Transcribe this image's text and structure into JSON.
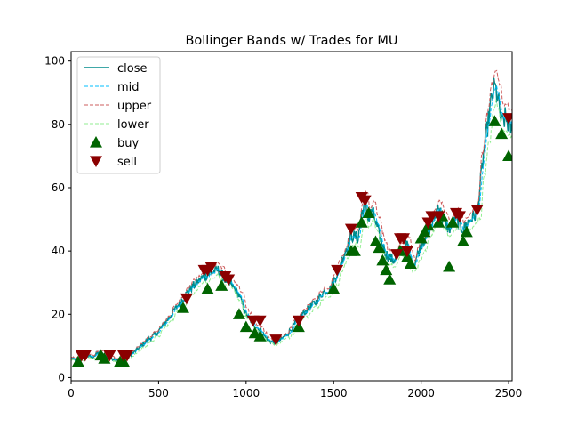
{
  "chart_data": {
    "type": "line",
    "title": "Bollinger Bands w/ Trades for MU",
    "xlabel": "",
    "ylabel": "",
    "xlim": [
      0,
      2520
    ],
    "ylim": [
      -1,
      103
    ],
    "xticks": [
      0,
      500,
      1000,
      1500,
      2000,
      2500
    ],
    "yticks": [
      0,
      20,
      40,
      60,
      80,
      100
    ],
    "grid": false,
    "legend_position": "top-left",
    "colors": {
      "close": "#008b8b",
      "mid": "#00bfff",
      "upper": "#cd5c5c",
      "lower": "#90ee90",
      "buy": "#006400",
      "sell": "#8b0000"
    },
    "legend": [
      {
        "key": "close",
        "label": "close",
        "style": "solid"
      },
      {
        "key": "mid",
        "label": "mid",
        "style": "dashed"
      },
      {
        "key": "upper",
        "label": "upper",
        "style": "dashed"
      },
      {
        "key": "lower",
        "label": "lower",
        "style": "dashed"
      },
      {
        "key": "buy",
        "label": "buy",
        "style": "triangle-up"
      },
      {
        "key": "sell",
        "label": "sell",
        "style": "triangle-down"
      }
    ],
    "close_path": [
      [
        0,
        6
      ],
      [
        40,
        5.5
      ],
      [
        80,
        7
      ],
      [
        120,
        6.5
      ],
      [
        160,
        8
      ],
      [
        200,
        6.5
      ],
      [
        240,
        6
      ],
      [
        280,
        5.5
      ],
      [
        320,
        6.5
      ],
      [
        360,
        8
      ],
      [
        400,
        10
      ],
      [
        440,
        12
      ],
      [
        480,
        13.5
      ],
      [
        520,
        16
      ],
      [
        560,
        19
      ],
      [
        600,
        22
      ],
      [
        640,
        25
      ],
      [
        680,
        28
      ],
      [
        720,
        30
      ],
      [
        760,
        32
      ],
      [
        800,
        33
      ],
      [
        840,
        34
      ],
      [
        880,
        31
      ],
      [
        920,
        29
      ],
      [
        960,
        26
      ],
      [
        1000,
        20
      ],
      [
        1040,
        17
      ],
      [
        1080,
        15
      ],
      [
        1120,
        12
      ],
      [
        1160,
        11
      ],
      [
        1200,
        12
      ],
      [
        1240,
        14
      ],
      [
        1280,
        17
      ],
      [
        1320,
        20
      ],
      [
        1360,
        22
      ],
      [
        1400,
        24
      ],
      [
        1440,
        27
      ],
      [
        1480,
        28
      ],
      [
        1520,
        33
      ],
      [
        1560,
        39
      ],
      [
        1600,
        45
      ],
      [
        1640,
        44
      ],
      [
        1660,
        52
      ],
      [
        1680,
        55
      ],
      [
        1700,
        50
      ],
      [
        1720,
        53
      ],
      [
        1760,
        45
      ],
      [
        1800,
        39
      ],
      [
        1840,
        37
      ],
      [
        1880,
        40
      ],
      [
        1920,
        42
      ],
      [
        1940,
        37
      ],
      [
        1960,
        36
      ],
      [
        2000,
        42
      ],
      [
        2040,
        46
      ],
      [
        2080,
        51
      ],
      [
        2100,
        55
      ],
      [
        2120,
        50
      ],
      [
        2160,
        47
      ],
      [
        2200,
        50
      ],
      [
        2240,
        47
      ],
      [
        2280,
        50
      ],
      [
        2320,
        52
      ],
      [
        2360,
        72
      ],
      [
        2400,
        87
      ],
      [
        2420,
        92
      ],
      [
        2440,
        88
      ],
      [
        2460,
        80
      ],
      [
        2480,
        82
      ],
      [
        2520,
        78
      ]
    ],
    "buy": [
      [
        40,
        5
      ],
      [
        170,
        7
      ],
      [
        190,
        6
      ],
      [
        280,
        5
      ],
      [
        300,
        5
      ],
      [
        640,
        22
      ],
      [
        780,
        28
      ],
      [
        860,
        29
      ],
      [
        960,
        20
      ],
      [
        1000,
        16
      ],
      [
        1050,
        14
      ],
      [
        1080,
        13
      ],
      [
        1300,
        16
      ],
      [
        1500,
        28
      ],
      [
        1600,
        40
      ],
      [
        1620,
        40
      ],
      [
        1660,
        49
      ],
      [
        1700,
        52
      ],
      [
        1740,
        43
      ],
      [
        1760,
        41
      ],
      [
        1780,
        37
      ],
      [
        1800,
        34
      ],
      [
        1820,
        31
      ],
      [
        1880,
        40
      ],
      [
        1920,
        38
      ],
      [
        1940,
        36
      ],
      [
        2000,
        44
      ],
      [
        2020,
        46
      ],
      [
        2040,
        48
      ],
      [
        2100,
        49
      ],
      [
        2120,
        51
      ],
      [
        2160,
        35
      ],
      [
        2180,
        49
      ],
      [
        2240,
        43
      ],
      [
        2260,
        46
      ],
      [
        2420,
        81
      ],
      [
        2460,
        77
      ],
      [
        2500,
        70
      ]
    ],
    "sell": [
      [
        60,
        7
      ],
      [
        80,
        7
      ],
      [
        220,
        7
      ],
      [
        300,
        7
      ],
      [
        320,
        7
      ],
      [
        660,
        25
      ],
      [
        760,
        34
      ],
      [
        780,
        34
      ],
      [
        800,
        35
      ],
      [
        880,
        32
      ],
      [
        900,
        31
      ],
      [
        1040,
        18
      ],
      [
        1080,
        18
      ],
      [
        1170,
        12
      ],
      [
        1300,
        18
      ],
      [
        1520,
        34
      ],
      [
        1600,
        47
      ],
      [
        1660,
        57
      ],
      [
        1680,
        56
      ],
      [
        1860,
        39
      ],
      [
        1880,
        44
      ],
      [
        1900,
        44
      ],
      [
        1920,
        40
      ],
      [
        2040,
        49
      ],
      [
        2060,
        51
      ],
      [
        2100,
        51
      ],
      [
        2200,
        52
      ],
      [
        2220,
        51
      ],
      [
        2320,
        53
      ],
      [
        2500,
        82
      ]
    ]
  }
}
